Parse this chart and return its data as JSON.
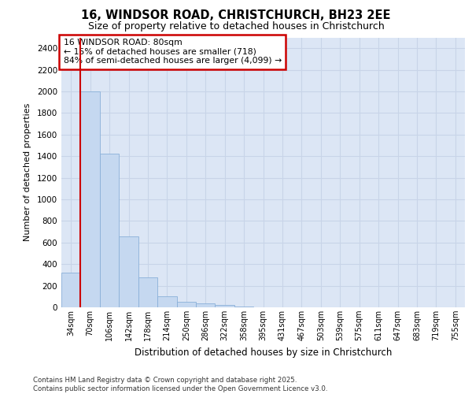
{
  "title_line1": "16, WINDSOR ROAD, CHRISTCHURCH, BH23 2EE",
  "title_line2": "Size of property relative to detached houses in Christchurch",
  "xlabel": "Distribution of detached houses by size in Christchurch",
  "ylabel": "Number of detached properties",
  "categories": [
    "34sqm",
    "70sqm",
    "106sqm",
    "142sqm",
    "178sqm",
    "214sqm",
    "250sqm",
    "286sqm",
    "322sqm",
    "358sqm",
    "395sqm",
    "431sqm",
    "467sqm",
    "503sqm",
    "539sqm",
    "575sqm",
    "611sqm",
    "647sqm",
    "683sqm",
    "719sqm",
    "755sqm"
  ],
  "values": [
    320,
    2000,
    1420,
    660,
    280,
    100,
    50,
    35,
    20,
    5,
    0,
    0,
    0,
    0,
    0,
    0,
    0,
    0,
    0,
    0,
    0
  ],
  "bar_color": "#c5d8f0",
  "bar_edge_color": "#8ab0d8",
  "grid_color": "#c8d4e8",
  "background_color": "#dce6f5",
  "annotation_text": "16 WINDSOR ROAD: 80sqm\n← 15% of detached houses are smaller (718)\n84% of semi-detached houses are larger (4,099) →",
  "annotation_box_color": "#ffffff",
  "annotation_box_edge": "#cc0000",
  "vline_color": "#cc0000",
  "footer_text": "Contains HM Land Registry data © Crown copyright and database right 2025.\nContains public sector information licensed under the Open Government Licence v3.0.",
  "ylim": [
    0,
    2500
  ],
  "yticks": [
    0,
    200,
    400,
    600,
    800,
    1000,
    1200,
    1400,
    1600,
    1800,
    2000,
    2200,
    2400
  ]
}
